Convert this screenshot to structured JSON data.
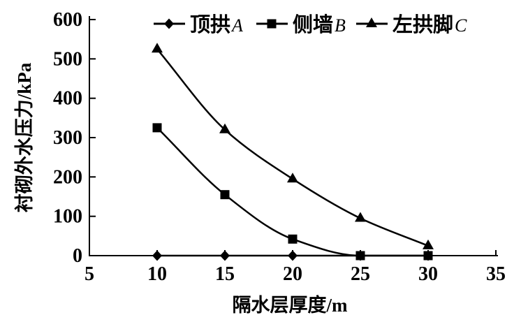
{
  "figure": {
    "background": "#ffffff",
    "ink_color": "#000000"
  },
  "chart_data": {
    "type": "line",
    "title": "",
    "xlabel": "隔水层厚度/m",
    "ylabel": "衬砌外水压力/kPa",
    "xlim": [
      5,
      35
    ],
    "ylim": [
      0,
      600
    ],
    "xticks": [
      5,
      10,
      15,
      20,
      25,
      30,
      35
    ],
    "yticks": [
      0,
      100,
      200,
      300,
      400,
      500,
      600
    ],
    "grid": false,
    "legend_position": "top-inside",
    "x": [
      10,
      15,
      20,
      25,
      30
    ],
    "series": [
      {
        "name": "顶拱A",
        "label_cn": "顶拱",
        "label_letter": "A",
        "marker": "diamond",
        "color": "#000000",
        "values": [
          0,
          0,
          0,
          0,
          0
        ]
      },
      {
        "name": "侧墙B",
        "label_cn": "侧墙",
        "label_letter": "B",
        "marker": "square",
        "color": "#000000",
        "values": [
          325,
          155,
          42,
          0,
          0
        ]
      },
      {
        "name": "左拱脚C",
        "label_cn": "左拱脚",
        "label_letter": "C",
        "marker": "triangle",
        "color": "#000000",
        "values": [
          525,
          320,
          195,
          95,
          25
        ]
      }
    ]
  }
}
